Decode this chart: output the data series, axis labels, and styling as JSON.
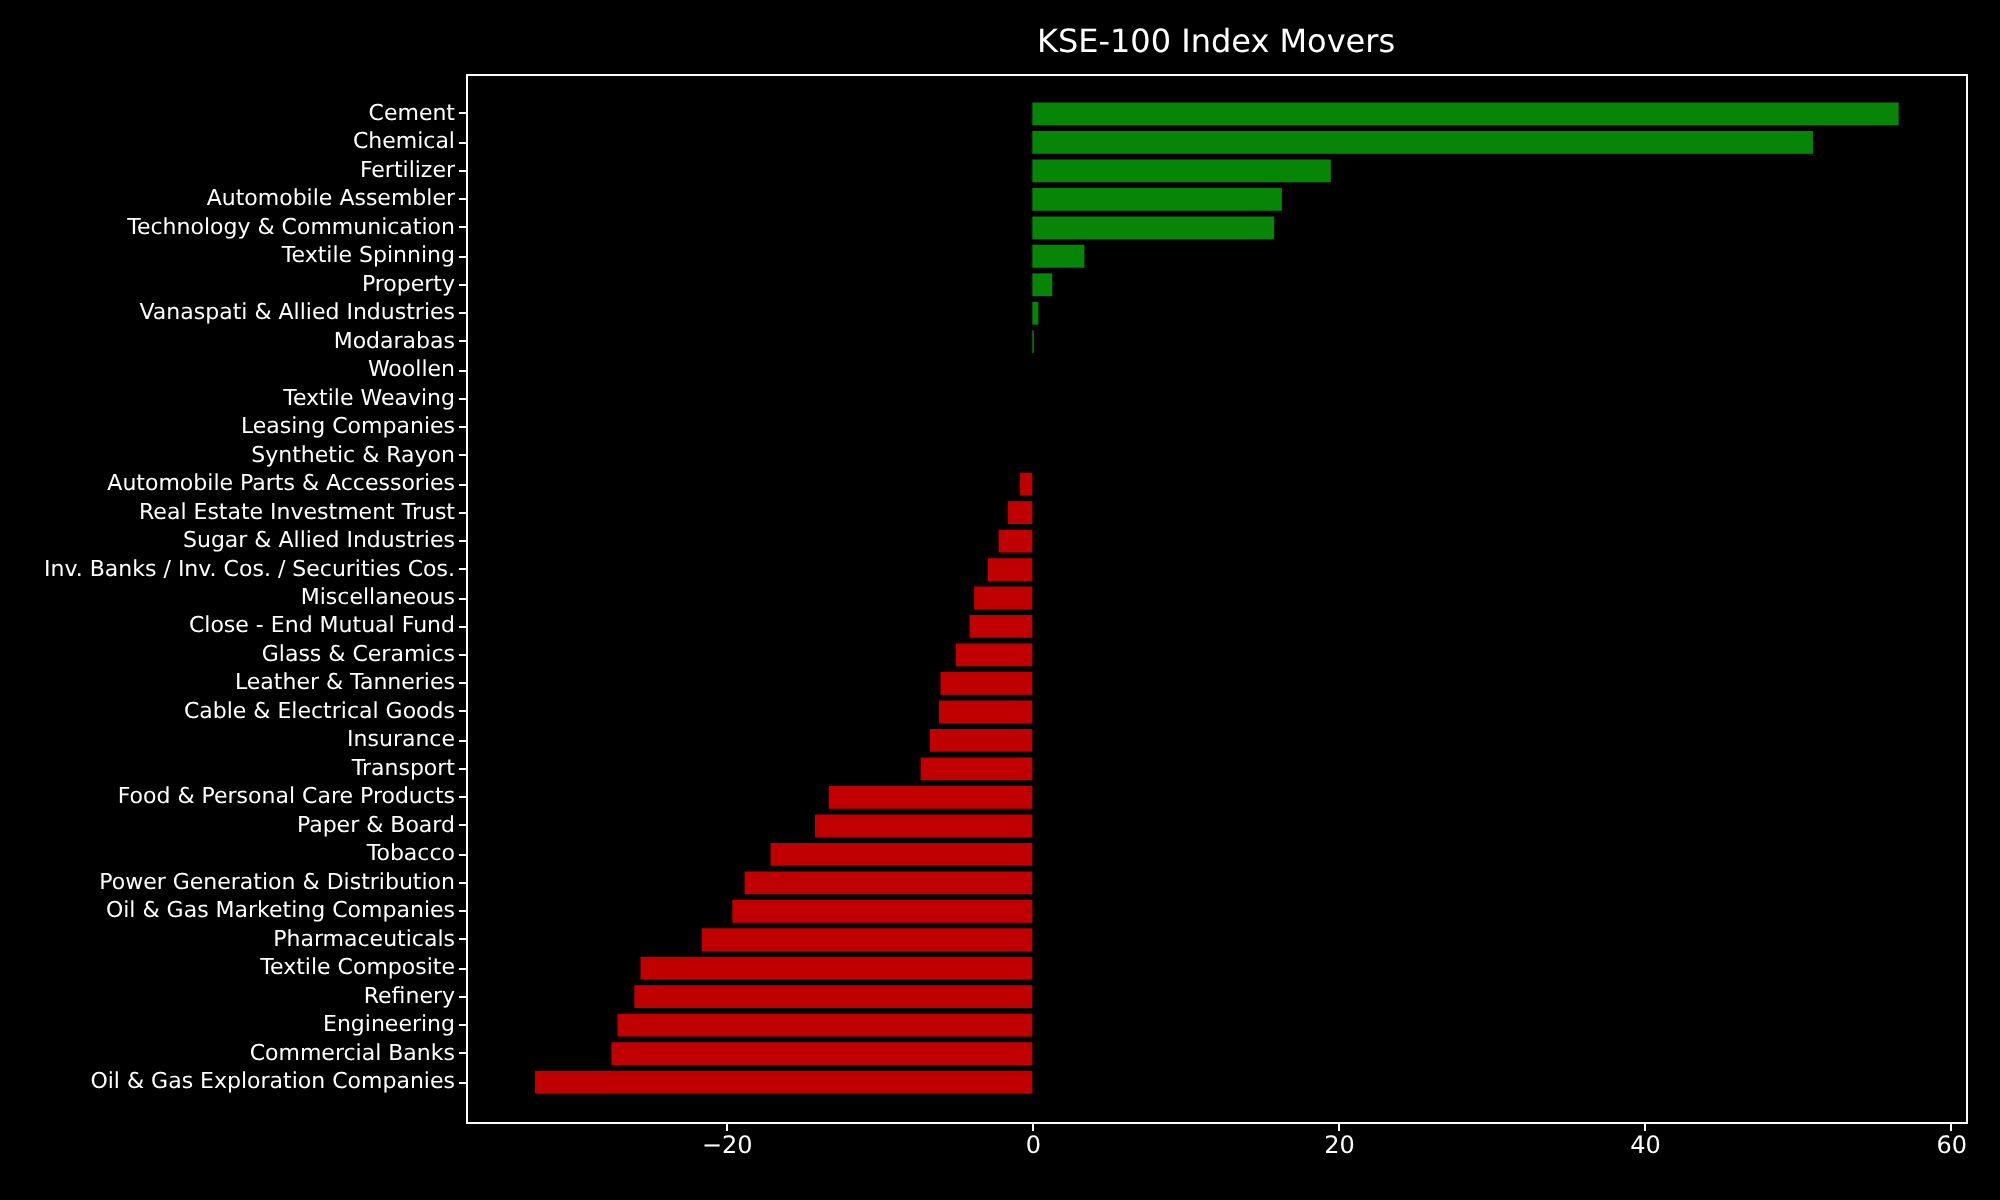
{
  "chart_data": {
    "type": "bar",
    "title": "KSE-100 Index Movers",
    "orientation": "horizontal",
    "categories": [
      "Cement",
      "Chemical",
      "Fertilizer",
      "Automobile Assembler",
      "Technology & Communication",
      "Textile Spinning",
      "Property",
      "Vanaspati & Allied Industries",
      "Modarabas",
      "Woollen",
      "Textile Weaving",
      "Leasing Companies",
      "Synthetic & Rayon",
      "Automobile Parts & Accessories",
      "Real Estate Investment Trust",
      "Sugar & Allied Industries",
      "Inv. Banks / Inv. Cos. / Securities Cos.",
      "Miscellaneous",
      "Close - End Mutual Fund",
      "Glass & Ceramics",
      "Leather & Tanneries",
      "Cable & Electrical Goods",
      "Insurance",
      "Transport",
      "Food & Personal Care Products",
      "Paper & Board",
      "Tobacco",
      "Power Generation & Distribution",
      "Oil & Gas Marketing Companies",
      "Pharmaceuticals",
      "Textile Composite",
      "Refinery",
      "Engineering",
      "Commercial Banks",
      "Oil & Gas Exploration Companies"
    ],
    "values": [
      56.6,
      51.0,
      19.5,
      16.3,
      15.8,
      3.4,
      1.3,
      0.4,
      0.1,
      0,
      0,
      0,
      0,
      -0.8,
      -1.6,
      -2.2,
      -2.9,
      -3.8,
      -4.1,
      -5.0,
      -6.0,
      -6.1,
      -6.7,
      -7.3,
      -13.3,
      -14.2,
      -17.1,
      -18.8,
      -19.6,
      -21.6,
      -25.6,
      -26.0,
      -27.1,
      -27.5,
      -32.5
    ],
    "colors": [
      "#078507",
      "#078507",
      "#078507",
      "#078507",
      "#078507",
      "#078507",
      "#078507",
      "#078507",
      "#078507",
      "#c00000",
      "#c00000",
      "#c00000",
      "#c00000",
      "#c00000",
      "#c00000",
      "#c00000",
      "#c00000",
      "#c00000",
      "#c00000",
      "#c00000",
      "#c00000",
      "#c00000",
      "#c00000",
      "#c00000",
      "#c00000",
      "#c00000",
      "#c00000",
      "#c00000",
      "#c00000",
      "#c00000",
      "#c00000",
      "#c00000",
      "#c00000",
      "#c00000",
      "#c00000"
    ],
    "xlim": [
      -37,
      61
    ],
    "xticks": [
      {
        "value": -20,
        "label": "−20"
      },
      0,
      20,
      40,
      60
    ]
  }
}
